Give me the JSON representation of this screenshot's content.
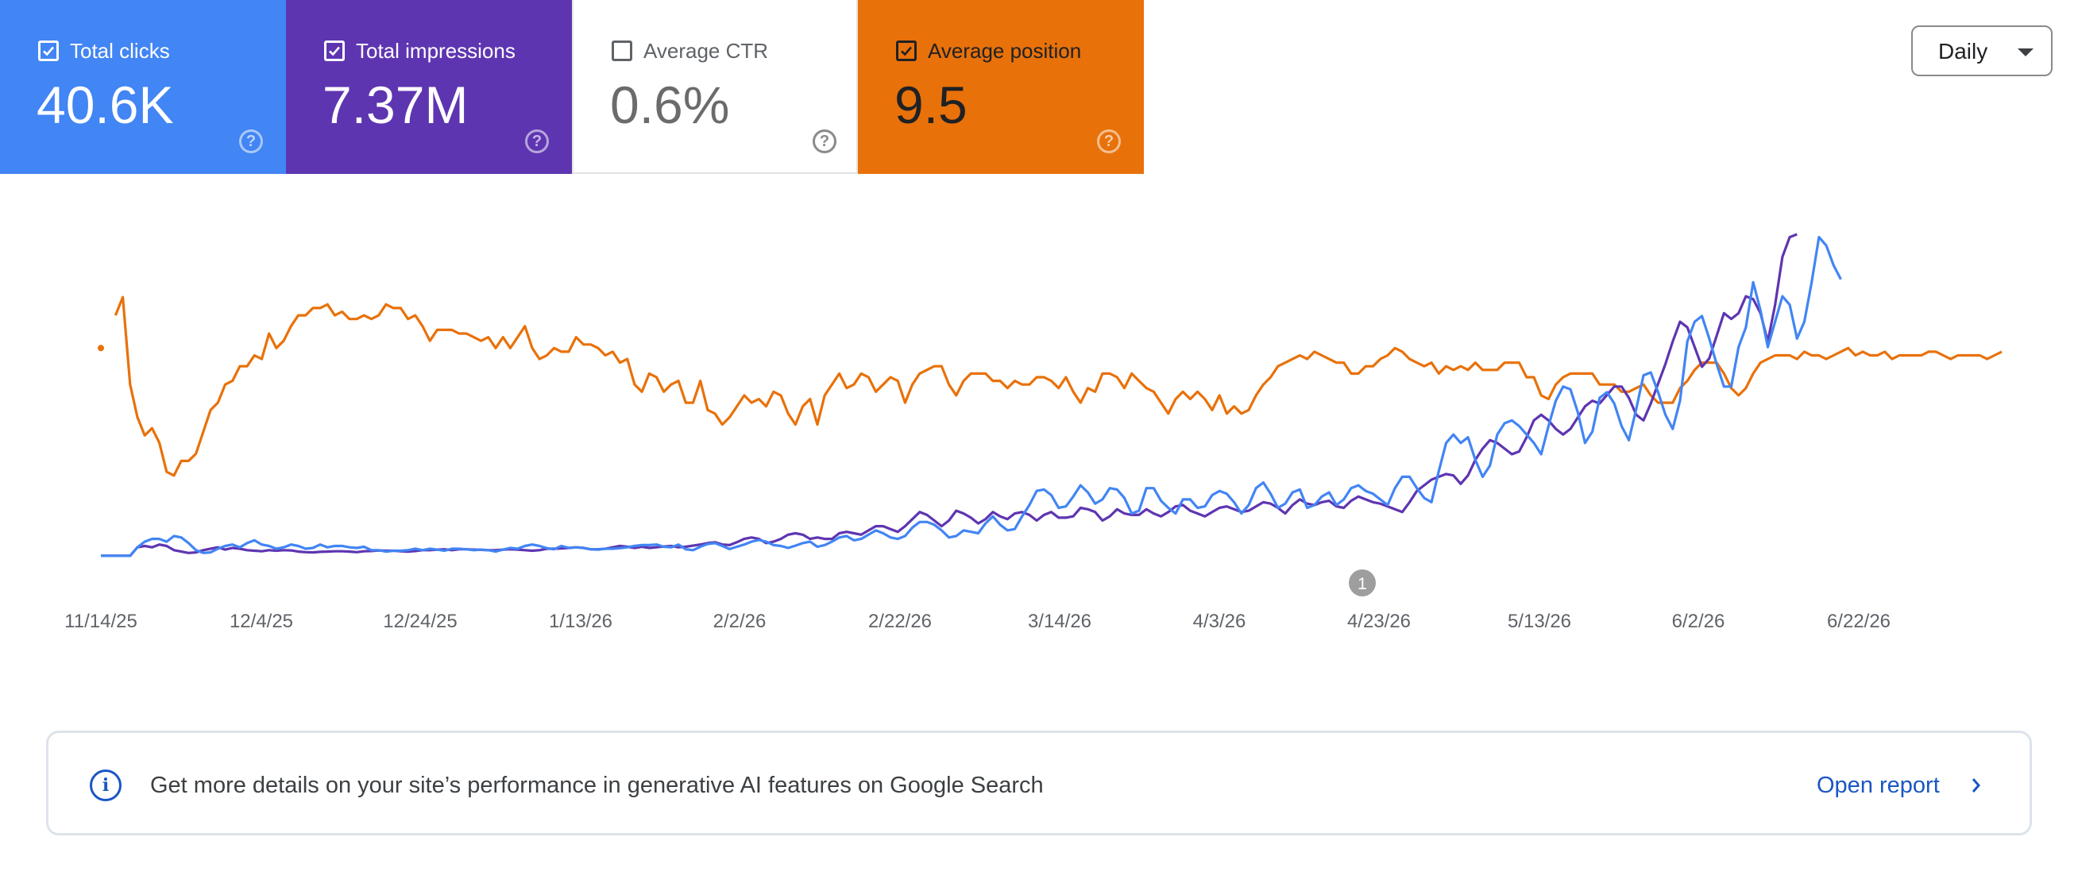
{
  "metrics": {
    "clicks": {
      "label": "Total clicks",
      "value": "40.6K",
      "checked": true,
      "color": "#4285f4"
    },
    "impressions": {
      "label": "Total impressions",
      "value": "7.37M",
      "checked": true,
      "color": "#5e35b1"
    },
    "ctr": {
      "label": "Average CTR",
      "value": "0.6%",
      "checked": false,
      "color": "#ffffff"
    },
    "position": {
      "label": "Average position",
      "value": "9.5",
      "checked": true,
      "color": "#e8710a"
    }
  },
  "granularity": {
    "selected": "Daily"
  },
  "chart_data": {
    "type": "line",
    "x_tick_labels": [
      "11/14/25",
      "12/4/25",
      "12/24/25",
      "1/13/26",
      "2/2/26",
      "2/22/26",
      "3/14/26",
      "4/3/26",
      "4/23/26",
      "5/13/26",
      "6/2/26",
      "6/22/26"
    ],
    "x_range": [
      "11/14/25",
      "7/13/26"
    ],
    "annotation": {
      "label": "1",
      "date": "4/23/26"
    },
    "legend": "none",
    "grid": false,
    "series": [
      {
        "name": "Average position",
        "color": "#e8710a",
        "values": [
          9.6,
          null,
          8.7,
          8.2,
          10.6,
          11.5,
          12.0,
          11.8,
          12.2,
          13.0,
          13.1,
          12.7,
          12.7,
          12.5,
          11.9,
          11.3,
          11.1,
          10.6,
          10.5,
          10.1,
          10.1,
          9.8,
          9.9,
          9.2,
          9.6,
          9.4,
          9.0,
          8.7,
          8.7,
          8.5,
          8.5,
          8.4,
          8.7,
          8.6,
          8.8,
          8.8,
          8.7,
          8.8,
          8.7,
          8.4,
          8.5,
          8.5,
          8.8,
          8.7,
          9.0,
          9.4,
          9.1,
          9.1,
          9.1,
          9.2,
          9.2,
          9.3,
          9.4,
          9.3,
          9.6,
          9.3,
          9.6,
          9.3,
          9.0,
          9.6,
          9.9,
          9.8,
          9.6,
          9.7,
          9.7,
          9.3,
          9.5,
          9.5,
          9.6,
          9.8,
          9.7,
          10.0,
          9.9,
          10.6,
          10.8,
          10.3,
          10.4,
          10.8,
          10.6,
          10.5,
          11.1,
          11.1,
          10.5,
          11.3,
          11.4,
          11.7,
          11.5,
          11.2,
          10.9,
          11.1,
          11.0,
          11.2,
          10.8,
          10.9,
          11.4,
          11.7,
          11.2,
          11.0,
          11.7,
          10.9,
          10.6,
          10.3,
          10.7,
          10.6,
          10.3,
          10.4,
          10.8,
          10.6,
          10.4,
          10.5,
          11.1,
          10.6,
          10.3,
          10.2,
          10.1,
          10.1,
          10.6,
          10.9,
          10.5,
          10.3,
          10.3,
          10.3,
          10.5,
          10.5,
          10.7,
          10.5,
          10.6,
          10.6,
          10.4,
          10.4,
          10.5,
          10.7,
          10.4,
          10.8,
          11.1,
          10.7,
          10.8,
          10.3,
          10.3,
          10.4,
          10.7,
          10.3,
          10.5,
          10.7,
          10.8,
          11.1,
          11.4,
          11.0,
          10.8,
          11.0,
          10.8,
          11.0,
          11.3,
          10.9,
          11.4,
          11.2,
          11.4,
          11.3,
          10.9,
          10.6,
          10.4,
          10.1,
          10.0,
          9.9,
          9.8,
          9.9,
          9.7,
          9.8,
          9.9,
          10.0,
          10.0,
          10.3,
          10.3,
          10.1,
          10.1,
          9.9,
          9.8,
          9.6,
          9.7,
          9.9,
          10.0,
          10.1,
          10.0,
          10.3,
          10.1,
          10.2,
          10.1,
          10.2,
          10.0,
          10.2,
          10.2,
          10.2,
          10.0,
          10.0,
          10.0,
          10.4,
          10.4,
          10.9,
          11.0,
          10.6,
          10.4,
          10.3,
          10.3,
          10.3,
          10.3,
          10.6,
          10.6,
          10.6,
          10.8,
          10.8,
          10.7,
          10.6,
          10.9,
          11.1,
          11.1,
          11.1,
          10.7,
          10.5,
          10.2,
          10.0,
          10.0,
          10.0,
          10.3,
          10.7,
          10.9,
          10.7,
          10.3,
          10.0,
          9.9,
          9.8,
          9.8,
          9.8,
          9.9,
          9.7,
          9.8,
          9.8,
          9.9,
          9.8,
          9.7,
          9.6,
          9.8,
          9.7,
          9.8,
          9.8,
          9.7,
          9.9,
          9.8,
          9.8,
          9.8,
          9.8,
          9.7,
          9.7,
          9.8,
          9.9,
          9.8,
          9.8,
          9.8,
          9.8,
          9.9,
          9.8,
          9.7
        ]
      },
      {
        "name": "Total impressions",
        "color": "#5e35b1",
        "values": [
          2000,
          2000,
          2000,
          2000,
          2000,
          5000,
          5500,
          5000,
          6000,
          5500,
          4000,
          3500,
          3000,
          3200,
          4000,
          4500,
          5000,
          4200,
          4800,
          4500,
          4000,
          3800,
          3600,
          4000,
          3800,
          4000,
          3900,
          3500,
          3300,
          3200,
          3400,
          3500,
          3600,
          3600,
          3500,
          3300,
          3600,
          3700,
          3900,
          3800,
          3800,
          3600,
          3500,
          3700,
          4000,
          4000,
          4200,
          4300,
          4000,
          4300,
          4300,
          4200,
          4100,
          4000,
          4000,
          4200,
          4300,
          4200,
          4000,
          3800,
          4000,
          4500,
          4500,
          4600,
          4800,
          5000,
          4800,
          4300,
          4300,
          4500,
          5000,
          5500,
          5200,
          4800,
          5200,
          4800,
          5000,
          5300,
          5500,
          5000,
          5200,
          5600,
          6000,
          6500,
          6800,
          6000,
          5800,
          6800,
          8000,
          8500,
          8000,
          6500,
          7000,
          8000,
          9500,
          10000,
          9500,
          8000,
          8500,
          8000,
          8000,
          10000,
          10500,
          10000,
          9500,
          11000,
          12500,
          12500,
          11500,
          10500,
          12500,
          15000,
          17500,
          16500,
          14500,
          12500,
          14500,
          18000,
          17000,
          15500,
          13500,
          15000,
          17500,
          16000,
          15000,
          17000,
          17500,
          16500,
          14500,
          16500,
          17500,
          15500,
          15500,
          16000,
          19000,
          18500,
          17500,
          14500,
          16000,
          18500,
          17000,
          16500,
          16500,
          18500,
          17000,
          16000,
          17500,
          19500,
          20000,
          18000,
          17000,
          16000,
          17500,
          19000,
          19500,
          18500,
          17500,
          18000,
          19500,
          21000,
          20500,
          19000,
          17000,
          20000,
          22000,
          20500,
          20000,
          21000,
          21500,
          19500,
          19000,
          21500,
          23000,
          22000,
          21000,
          20500,
          19500,
          18500,
          17500,
          21000,
          25000,
          27000,
          29000,
          30000,
          31000,
          30500,
          27500,
          30500,
          36000,
          40000,
          43000,
          42000,
          40000,
          38000,
          39000,
          44000,
          50000,
          52000,
          50000,
          47000,
          45000,
          47000,
          51000,
          55000,
          57000,
          56000,
          59000,
          62000,
          62000,
          58000,
          52000,
          50000,
          56000,
          63000,
          70000,
          78000,
          85000,
          83000,
          76000,
          69000,
          72000,
          80000,
          88000,
          86000,
          88000,
          94000,
          93000,
          88000,
          78000,
          91000,
          108000,
          115000,
          116000
        ],
        "note": "relative daily values; y-axis not labeled"
      },
      {
        "name": "Total clicks",
        "color": "#4285f4",
        "values": [
          2000,
          2000,
          2000,
          2000,
          2000,
          5000,
          7000,
          8000,
          8000,
          7000,
          9000,
          8500,
          6500,
          4000,
          3000,
          3200,
          4500,
          5500,
          6000,
          5000,
          6500,
          7500,
          6000,
          5500,
          4500,
          5000,
          6000,
          5500,
          4500,
          4800,
          6000,
          5000,
          5500,
          5500,
          5000,
          4800,
          5200,
          4000,
          4000,
          3500,
          3800,
          3800,
          4000,
          4500,
          4000,
          4500,
          4200,
          3800,
          4500,
          4500,
          4300,
          4000,
          4200,
          4000,
          3500,
          4200,
          4800,
          4500,
          5500,
          6000,
          5500,
          4700,
          4300,
          5500,
          4800,
          5000,
          4800,
          4300,
          4200,
          4500,
          4500,
          4700,
          5000,
          5500,
          5800,
          5800,
          6000,
          5200,
          5000,
          6000,
          4300,
          4000,
          5200,
          6200,
          6500,
          5500,
          4400,
          5200,
          6000,
          7000,
          7600,
          7000,
          5800,
          5500,
          4800,
          5600,
          6500,
          7000,
          5200,
          5800,
          7000,
          8500,
          9000,
          7500,
          8000,
          9500,
          11000,
          10000,
          8500,
          8000,
          9000,
          12000,
          14000,
          14000,
          13000,
          11000,
          8500,
          9000,
          11000,
          10500,
          10000,
          13500,
          16000,
          13000,
          11000,
          11500,
          16000,
          20000,
          25000,
          25500,
          23500,
          19000,
          19500,
          23000,
          27000,
          24500,
          20500,
          22000,
          26000,
          25500,
          22500,
          17000,
          18000,
          26000,
          26000,
          21500,
          19000,
          17000,
          22000,
          22000,
          19000,
          19500,
          23500,
          25000,
          24000,
          21000,
          17000,
          20000,
          26000,
          28000,
          24000,
          19000,
          20500,
          24500,
          25500,
          19000,
          20000,
          23000,
          24500,
          20000,
          22000,
          26000,
          27000,
          25000,
          24000,
          22000,
          20000,
          26000,
          30000,
          30000,
          26000,
          22500,
          21000,
          32000,
          42000,
          45000,
          42000,
          44000,
          36000,
          30000,
          34000,
          45000,
          49000,
          50000,
          48000,
          45000,
          42000,
          38000,
          48000,
          57000,
          62000,
          61000,
          53000,
          42000,
          46000,
          58000,
          60000,
          56000,
          48000,
          43000,
          54000,
          66000,
          67000,
          60000,
          52000,
          47000,
          57000,
          78000,
          85000,
          87000,
          79000,
          70000,
          62000,
          62000,
          76000,
          83000,
          99000,
          89000,
          76000,
          85000,
          94000,
          91000,
          79000,
          85000,
          99000,
          115000,
          112000,
          105000,
          100000
        ]
      }
    ]
  },
  "banner": {
    "message": "Get more details on your site’s performance in generative AI features on Google Search",
    "link_label": "Open report"
  }
}
